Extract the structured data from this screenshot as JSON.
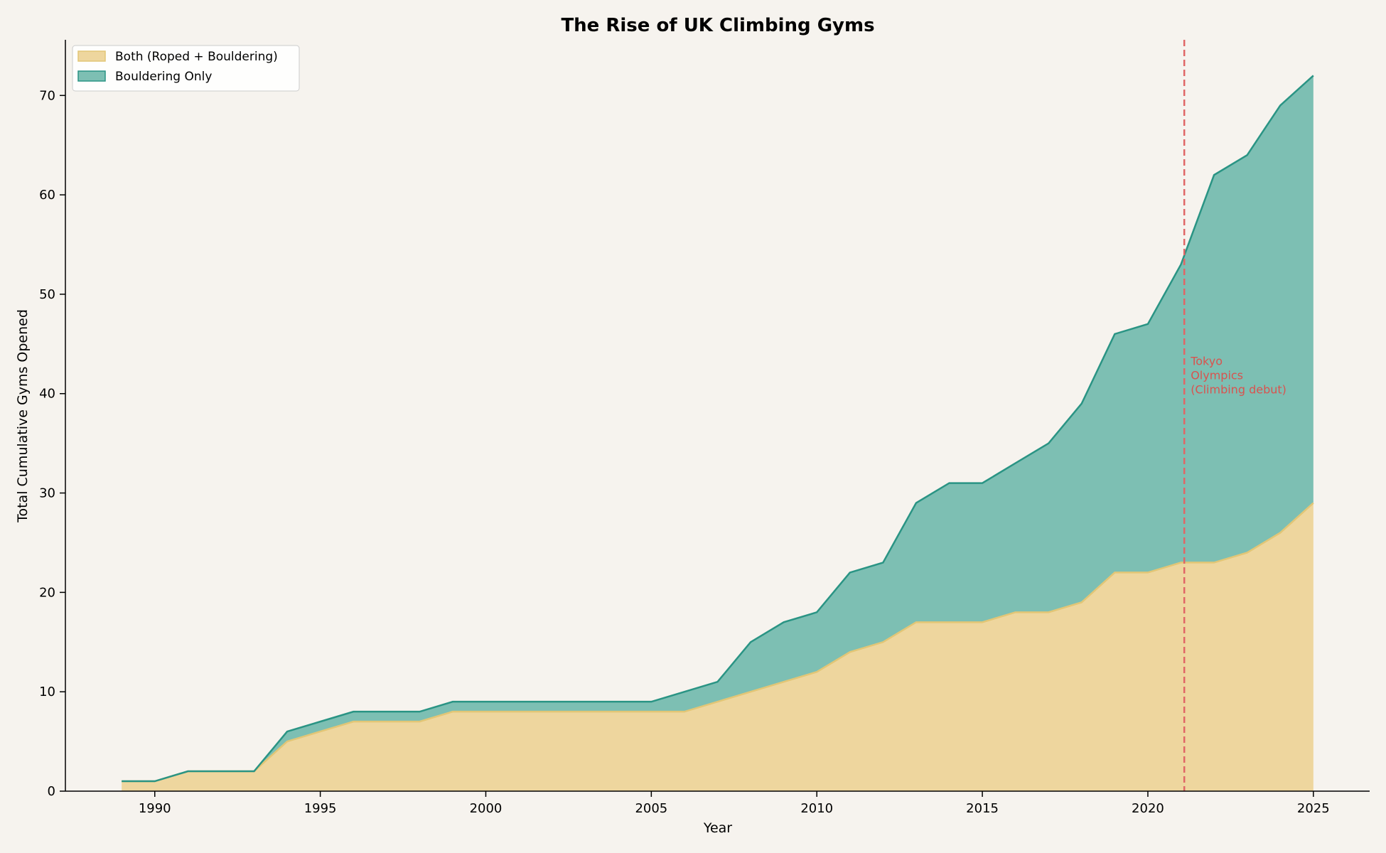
{
  "chart_data": {
    "type": "area",
    "stacked": true,
    "title": "The Rise of UK Climbing Gyms",
    "xlabel": "Year",
    "ylabel": "Total Cumulative Gyms Opened",
    "xlim": [
      1987.3,
      2026.7
    ],
    "ylim": [
      0,
      75.6
    ],
    "xticks": [
      1990,
      1995,
      2000,
      2005,
      2010,
      2015,
      2020,
      2025
    ],
    "yticks": [
      0,
      10,
      20,
      30,
      40,
      50,
      60,
      70
    ],
    "grid": false,
    "legend_position": "top-left",
    "x": [
      1989,
      1990,
      1991,
      1992,
      1993,
      1994,
      1995,
      1996,
      1997,
      1998,
      1999,
      2000,
      2001,
      2002,
      2003,
      2004,
      2005,
      2006,
      2007,
      2008,
      2009,
      2010,
      2011,
      2012,
      2013,
      2014,
      2015,
      2016,
      2017,
      2018,
      2019,
      2020,
      2021,
      2022,
      2023,
      2024,
      2025
    ],
    "series": [
      {
        "name": "Both (Roped + Bouldering)",
        "fill": "#eed69e",
        "stroke": "#e2c676",
        "values": [
          1,
          1,
          2,
          2,
          2,
          5,
          6,
          7,
          7,
          7,
          8,
          8,
          8,
          8,
          8,
          8,
          8,
          8,
          9,
          10,
          11,
          12,
          14,
          15,
          17,
          17,
          17,
          18,
          18,
          19,
          22,
          22,
          23,
          23,
          24,
          26,
          29
        ]
      },
      {
        "name": "Bouldering Only",
        "fill": "#7dbfb3",
        "stroke": "#2a9484",
        "values": [
          0,
          0,
          0,
          0,
          0,
          1,
          1,
          1,
          1,
          1,
          1,
          1,
          1,
          1,
          1,
          1,
          1,
          2,
          2,
          5,
          6,
          6,
          8,
          8,
          12,
          14,
          14,
          15,
          17,
          20,
          24,
          25,
          30,
          39,
          40,
          43,
          43
        ]
      }
    ],
    "annotations": [
      {
        "type": "vline",
        "x": 2021.1,
        "color": "#e06666",
        "dashed": true,
        "text": [
          "Tokyo",
          "Olympics",
          "(Climbing debut)"
        ],
        "text_color": "#d9534f",
        "text_y": 40
      }
    ]
  }
}
